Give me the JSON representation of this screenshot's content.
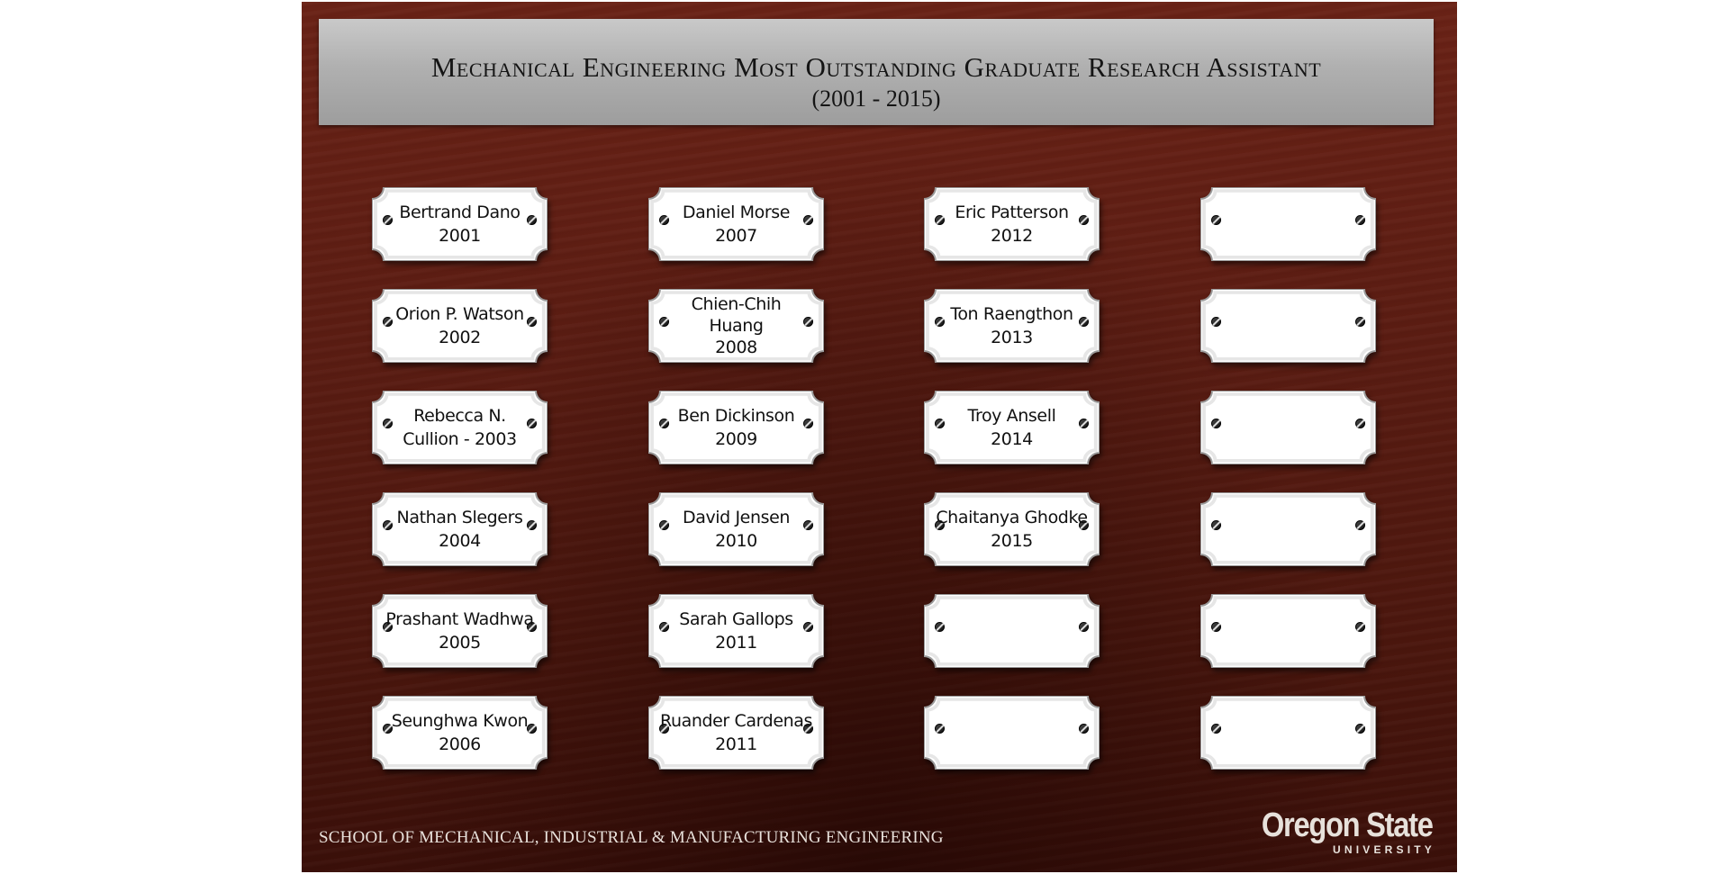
{
  "title": {
    "line1": "Mechanical Engineering Most Outstanding Graduate Research Assistant",
    "line2": "(2001 - 2015)"
  },
  "plaques": [
    {
      "col": 0,
      "row": 0,
      "lines": [
        "Bertrand Dano",
        "2001"
      ]
    },
    {
      "col": 0,
      "row": 1,
      "lines": [
        "Orion P. Watson",
        "2002"
      ]
    },
    {
      "col": 0,
      "row": 2,
      "lines": [
        "Rebecca N.",
        "Cullion - 2003"
      ]
    },
    {
      "col": 0,
      "row": 3,
      "lines": [
        "Nathan Slegers",
        "2004"
      ]
    },
    {
      "col": 0,
      "row": 4,
      "lines": [
        "Prashant Wadhwa",
        "2005"
      ]
    },
    {
      "col": 0,
      "row": 5,
      "lines": [
        "Seunghwa Kwon",
        "2006"
      ]
    },
    {
      "col": 1,
      "row": 0,
      "lines": [
        "Daniel Morse",
        "2007"
      ]
    },
    {
      "col": 1,
      "row": 1,
      "lines": [
        "Chien-Chih",
        "Huang",
        "2008"
      ]
    },
    {
      "col": 1,
      "row": 2,
      "lines": [
        "Ben Dickinson",
        "2009"
      ]
    },
    {
      "col": 1,
      "row": 3,
      "lines": [
        "David Jensen",
        "2010"
      ]
    },
    {
      "col": 1,
      "row": 4,
      "lines": [
        "Sarah Gallops",
        "2011"
      ]
    },
    {
      "col": 1,
      "row": 5,
      "lines": [
        "Ruander Cardenas",
        "2011"
      ]
    },
    {
      "col": 2,
      "row": 0,
      "lines": [
        "Eric Patterson",
        "2012"
      ]
    },
    {
      "col": 2,
      "row": 1,
      "lines": [
        "Ton Raengthon",
        "2013"
      ]
    },
    {
      "col": 2,
      "row": 2,
      "lines": [
        "Troy Ansell",
        "2014"
      ]
    },
    {
      "col": 2,
      "row": 3,
      "lines": [
        "Chaitanya Ghodke",
        "2015"
      ]
    },
    {
      "col": 2,
      "row": 4,
      "lines": []
    },
    {
      "col": 2,
      "row": 5,
      "lines": []
    },
    {
      "col": 3,
      "row": 0,
      "lines": []
    },
    {
      "col": 3,
      "row": 1,
      "lines": []
    },
    {
      "col": 3,
      "row": 2,
      "lines": []
    },
    {
      "col": 3,
      "row": 3,
      "lines": []
    },
    {
      "col": 3,
      "row": 4,
      "lines": []
    },
    {
      "col": 3,
      "row": 5,
      "lines": []
    }
  ],
  "footer": {
    "school": "SCHOOL OF MECHANICAL, INDUSTRIAL & MANUFACTURING ENGINEERING"
  },
  "logo": {
    "main": "Oregon State",
    "sub": "UNIVERSITY"
  },
  "colors": {
    "wood": "#5a1c12",
    "plate": "#b4b4b4",
    "plaque": "#ffffff"
  }
}
